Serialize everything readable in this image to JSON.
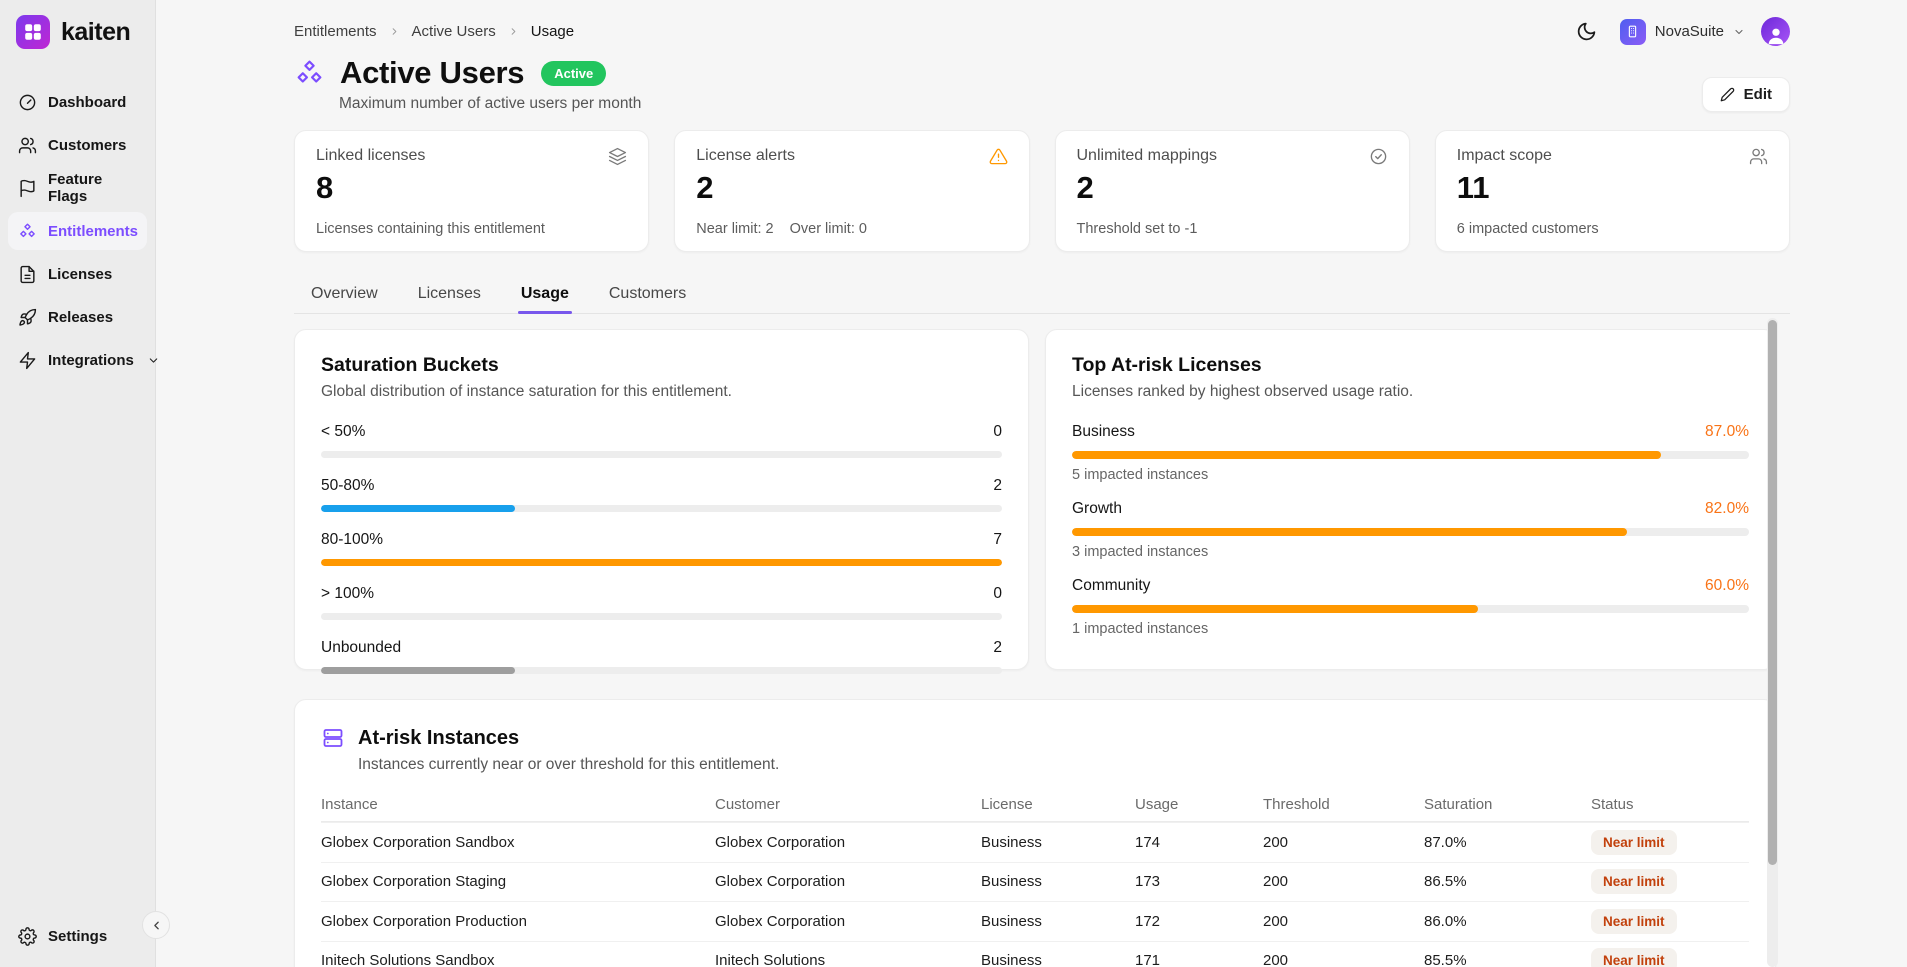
{
  "brand": {
    "name": "kaiten"
  },
  "sidebar": {
    "items": [
      {
        "label": "Dashboard",
        "icon": "dashboard-gauge-icon"
      },
      {
        "label": "Customers",
        "icon": "customers-icon"
      },
      {
        "label": "Feature Flags",
        "icon": "flag-icon"
      },
      {
        "label": "Entitlements",
        "icon": "entitlements-cubes-icon",
        "active": true
      },
      {
        "label": "Licenses",
        "icon": "license-file-icon"
      },
      {
        "label": "Releases",
        "icon": "rocket-icon"
      },
      {
        "label": "Integrations",
        "icon": "lightning-icon",
        "expandable": true
      }
    ],
    "settings_label": "Settings"
  },
  "topbar": {
    "breadcrumb": [
      "Entitlements",
      "Active Users",
      "Usage"
    ],
    "workspace": "NovaSuite"
  },
  "page": {
    "title": "Active Users",
    "status_badge": "Active",
    "subtitle": "Maximum number of active users per month",
    "edit_label": "Edit"
  },
  "stat_cards": [
    {
      "title": "Linked licenses",
      "icon": "layers-icon",
      "value": "8",
      "subtext": "Licenses containing this entitlement"
    },
    {
      "title": "License alerts",
      "icon": "warning-triangle-icon",
      "value": "2",
      "subtext_near": "Near limit: 2",
      "subtext_over": "Over limit: 0"
    },
    {
      "title": "Unlimited mappings",
      "icon": "check-circle-icon",
      "value": "2",
      "subtext": "Threshold set to -1"
    },
    {
      "title": "Impact scope",
      "icon": "users-icon",
      "value": "11",
      "subtext": "6 impacted customers"
    }
  ],
  "tabs": [
    {
      "label": "Overview"
    },
    {
      "label": "Licenses"
    },
    {
      "label": "Usage",
      "active": true
    },
    {
      "label": "Customers"
    }
  ],
  "saturation_buckets": {
    "title": "Saturation Buckets",
    "subtitle": "Global distribution of instance saturation for this entitlement.",
    "rows": [
      {
        "label": "< 50%",
        "count": "0",
        "fill_pct": 0,
        "color": "#18a0ec"
      },
      {
        "label": "50-80%",
        "count": "2",
        "fill_pct": 28.5,
        "color": "#18a0ec"
      },
      {
        "label": "80-100%",
        "count": "7",
        "fill_pct": 100,
        "color": "#ff9800"
      },
      {
        "label": "> 100%",
        "count": "0",
        "fill_pct": 0,
        "color": "#ff9800"
      },
      {
        "label": "Unbounded",
        "count": "2",
        "fill_pct": 28.5,
        "color": "#9e9e9e"
      }
    ]
  },
  "top_at_risk": {
    "title": "Top At-risk Licenses",
    "subtitle": "Licenses ranked by highest observed usage ratio.",
    "rows": [
      {
        "name": "Business",
        "pct": "87.0%",
        "fill_pct": 87,
        "note": "5 impacted instances"
      },
      {
        "name": "Growth",
        "pct": "82.0%",
        "fill_pct": 82,
        "note": "3 impacted instances"
      },
      {
        "name": "Community",
        "pct": "60.0%",
        "fill_pct": 60,
        "note": "1 impacted instances"
      }
    ]
  },
  "at_risk_instances": {
    "title": "At-risk Instances",
    "subtitle": "Instances currently near or over threshold for this entitlement.",
    "columns": [
      "Instance",
      "Customer",
      "License",
      "Usage",
      "Threshold",
      "Saturation",
      "Status"
    ],
    "rows": [
      [
        "Globex Corporation Sandbox",
        "Globex Corporation",
        "Business",
        "174",
        "200",
        "87.0%",
        "Near limit"
      ],
      [
        "Globex Corporation Staging",
        "Globex Corporation",
        "Business",
        "173",
        "200",
        "86.5%",
        "Near limit"
      ],
      [
        "Globex Corporation Production",
        "Globex Corporation",
        "Business",
        "172",
        "200",
        "86.0%",
        "Near limit"
      ],
      [
        "Initech Solutions Sandbox",
        "Initech Solutions",
        "Business",
        "171",
        "200",
        "85.5%",
        "Near limit"
      ]
    ]
  },
  "colors": {
    "accent": "#7c4dff",
    "tab_underline": "#7857ec",
    "badge_green": "#22c55e",
    "bar_orange": "#ff9800",
    "bar_blue": "#18a0ec",
    "bar_gray": "#9e9e9e",
    "pct_orange": "#f97316",
    "near_limit_text": "#c2410c"
  }
}
